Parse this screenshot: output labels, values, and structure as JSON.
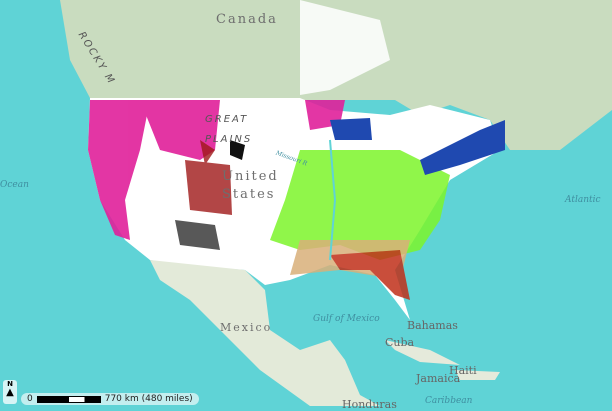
{
  "labels": {
    "canada": "Canada",
    "united_states": "United States",
    "mexico": "Mexico",
    "rocky_mountains": "ROCKY M",
    "great_plains": "GREAT PLAINS",
    "missouri": "Missouri R",
    "gulf": "Gulf of Mexico",
    "pacific": "Ocean",
    "atlantic": "Atlantic",
    "bahamas": "Bahamas",
    "cuba": "Cuba",
    "haiti": "Haiti",
    "jamaica": "Jamaica",
    "caribbean": "Caribbean",
    "honduras": "Honduras"
  },
  "north_arrow": {
    "label": "N"
  },
  "scale_bar": {
    "zero": "0",
    "text": "770 km (480 miles)"
  },
  "colors": {
    "ocean": "#5fd3d6",
    "canada": "#c9dcbf",
    "us": "#ffffff",
    "magenta": "#e0209a",
    "green": "#7df52a",
    "blue": "#1f49b0",
    "darkred": "#a01818",
    "tan": "#d9b07a",
    "black": "#111111"
  }
}
